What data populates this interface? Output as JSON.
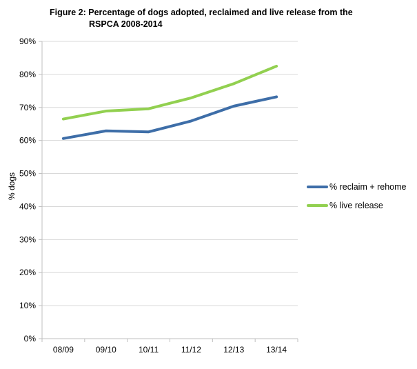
{
  "chart_data": {
    "type": "line",
    "title_lines": [
      "Figure 2: Percentage of dogs adopted, reclaimed and live release from the",
      "RSPCA 2008-2014"
    ],
    "xlabel": "",
    "ylabel": "% dogs",
    "categories": [
      "08/09",
      "09/10",
      "10/11",
      "11/12",
      "12/13",
      "13/14"
    ],
    "ylim": [
      0,
      90
    ],
    "yticks": [
      "0%",
      "10%",
      "20%",
      "30%",
      "40%",
      "50%",
      "60%",
      "70%",
      "80%",
      "90%"
    ],
    "ytick_values": [
      0,
      10,
      20,
      30,
      40,
      50,
      60,
      70,
      80,
      90
    ],
    "grid": "horizontal",
    "legend_position": "right",
    "series": [
      {
        "name": "% reclaim + rehome",
        "color": "#3e6ea8",
        "values": [
          60.6,
          62.9,
          62.6,
          65.9,
          70.4,
          73.2
        ]
      },
      {
        "name": "% live release",
        "color": "#92d050",
        "values": [
          66.5,
          68.9,
          69.6,
          72.9,
          77.2,
          82.5
        ]
      }
    ]
  }
}
